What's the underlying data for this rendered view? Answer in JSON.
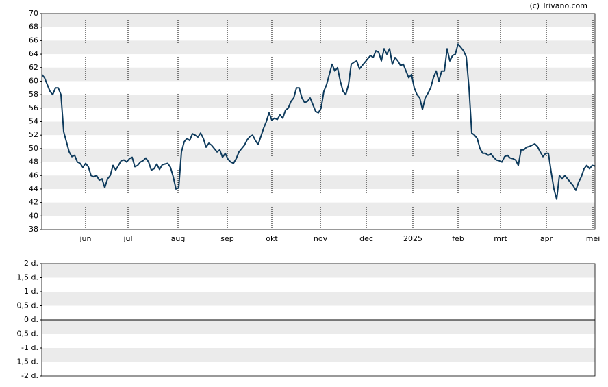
{
  "chart_data": [
    {
      "type": "line",
      "annotation": "(c) Trivano.com",
      "ylim": [
        38,
        70
      ],
      "yticks": [
        38,
        40,
        42,
        44,
        46,
        48,
        50,
        52,
        54,
        56,
        58,
        60,
        62,
        64,
        66,
        68,
        70
      ],
      "xlim": [
        0,
        202
      ],
      "xticks": [
        {
          "value": 16,
          "label": "jun"
        },
        {
          "value": 31.5,
          "label": "jul"
        },
        {
          "value": 49.75,
          "label": "aug"
        },
        {
          "value": 67.75,
          "label": "sep"
        },
        {
          "value": 84,
          "label": "okt"
        },
        {
          "value": 101.75,
          "label": "nov"
        },
        {
          "value": 118.5,
          "label": "dec"
        },
        {
          "value": 135.5,
          "label": "2025"
        },
        {
          "value": 152,
          "label": "feb"
        },
        {
          "value": 167.5,
          "label": "mrt"
        },
        {
          "value": 184.25,
          "label": "apr"
        },
        {
          "value": 201.25,
          "label": "mei"
        }
      ],
      "grid": true,
      "series": [
        {
          "color": "#0d3a5c",
          "values": [
            61,
            60.5,
            59.5,
            58.5,
            58,
            59,
            59,
            58,
            52.5,
            51,
            49.5,
            48.8,
            49,
            48,
            47.8,
            47.2,
            47.8,
            47.3,
            46,
            45.8,
            46,
            45.3,
            45.5,
            44.2,
            45.5,
            46,
            47.5,
            46.8,
            47.5,
            48.2,
            48.3,
            48,
            48.5,
            48.7,
            47.3,
            47.5,
            48,
            48.2,
            48.6,
            48,
            46.8,
            47,
            47.7,
            46.9,
            47.6,
            47.7,
            47.8,
            47.2,
            45.8,
            44,
            44.2,
            49.5,
            51,
            51.5,
            51.2,
            52.2,
            52,
            51.7,
            52.3,
            51.5,
            50.2,
            50.8,
            50.5,
            50,
            49.5,
            49.8,
            48.7,
            49.3,
            48.4,
            48,
            47.8,
            48.5,
            49.5,
            50,
            50.5,
            51.3,
            51.8,
            52,
            51.2,
            50.6,
            51.8,
            53,
            54,
            55.3,
            54.2,
            54.5,
            54.3,
            55,
            54.5,
            55.7,
            56,
            57,
            57.5,
            59,
            59,
            57.5,
            56.8,
            57,
            57.5,
            56.5,
            55.5,
            55.3,
            56,
            58.5,
            59.5,
            61,
            62.5,
            61.5,
            62,
            60,
            58.5,
            58,
            59.5,
            62.5,
            62.8,
            63,
            61.8,
            62.3,
            62.8,
            63.3,
            63.8,
            63.5,
            64.5,
            64.3,
            63,
            64.8,
            64,
            64.8,
            62.5,
            63.5,
            63,
            62.3,
            62.5,
            61.5,
            60.5,
            61,
            59,
            58,
            57.5,
            55.8,
            57.5,
            58.2,
            59,
            60.5,
            61.5,
            60,
            61.5,
            61.5,
            64.8,
            63,
            63.8,
            64,
            65.5,
            65,
            64.5,
            63.6,
            59,
            52.3,
            52,
            51.5,
            50,
            49.3,
            49.3,
            49,
            49.2,
            48.7,
            48.3,
            48.2,
            48,
            48.8,
            49,
            48.6,
            48.5,
            48.3,
            47.5,
            49.8,
            49.8,
            50.2,
            50.3,
            50.5,
            50.7,
            50.3,
            49.5,
            48.8,
            49.3,
            49.3,
            46.5,
            44,
            42.5,
            46,
            45.5,
            46,
            45.5,
            45,
            44.5,
            43.8,
            45,
            45.8,
            47,
            47.5,
            47,
            47.5,
            47.4
          ]
        }
      ]
    },
    {
      "type": "line",
      "ylim": [
        -2,
        2
      ],
      "grid": true,
      "yticks": [
        {
          "value": -2,
          "label": "-2 d."
        },
        {
          "value": -1.5,
          "label": "-1,5 d."
        },
        {
          "value": -1,
          "label": "-1 d."
        },
        {
          "value": -0.5,
          "label": "-0,5 d."
        },
        {
          "value": 0,
          "label": "0 d."
        },
        {
          "value": 0.5,
          "label": "0,5 d."
        },
        {
          "value": 1,
          "label": "1 d."
        },
        {
          "value": 1.5,
          "label": "1,5 d."
        },
        {
          "value": 2,
          "label": "2 d."
        }
      ],
      "series": []
    }
  ]
}
